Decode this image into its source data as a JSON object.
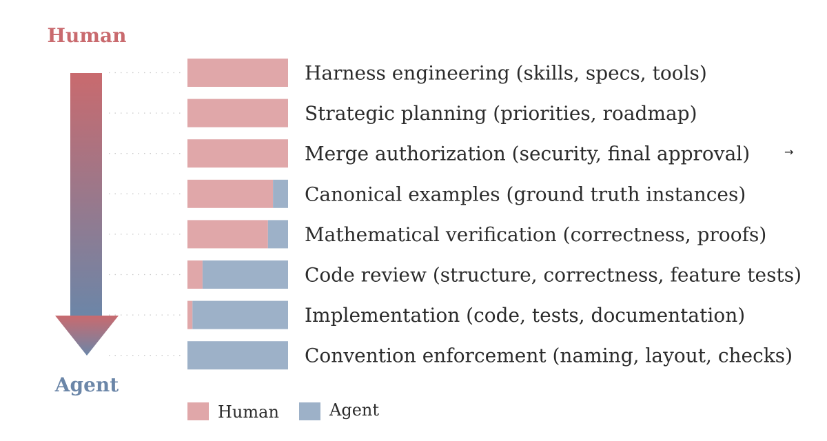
{
  "chart_data": {
    "type": "bar",
    "orientation": "horizontal",
    "stacked": true,
    "normalized": true,
    "axis_top_label": "Human",
    "axis_bottom_label": "Agent",
    "categories": [
      "Harness engineering (skills, specs, tools)",
      "Strategic planning (priorities, roadmap)",
      "Merge authorization (security, final approval)",
      "Canonical examples (ground truth instances)",
      "Mathematical verification (correctness, proofs)",
      "Code review (structure, correctness, feature tests)",
      "Implementation (code, tests, documentation)",
      "Convention enforcement (naming, layout, checks)"
    ],
    "series": [
      {
        "name": "Human",
        "color": "#e0a7a9",
        "values": [
          100,
          100,
          100,
          85,
          80,
          15,
          5,
          0
        ]
      },
      {
        "name": "Agent",
        "color": "#9db1c8",
        "values": [
          0,
          0,
          0,
          15,
          20,
          85,
          95,
          100
        ]
      }
    ],
    "xlim": [
      0,
      100
    ],
    "grid": false,
    "legend_position": "bottom-left",
    "annotation": "→",
    "colors": {
      "human_text": "#c96a6e",
      "agent_text": "#6b86a8",
      "arrow_top": "#c96a6e",
      "arrow_bottom": "#6b86a8",
      "guide_dots": "#c8c8c8"
    }
  }
}
